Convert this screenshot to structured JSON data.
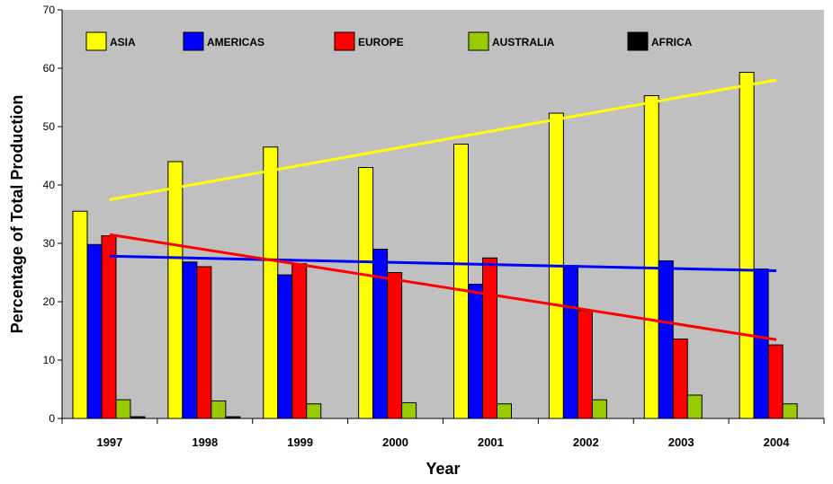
{
  "chart_data": {
    "type": "bar",
    "categories": [
      "1997",
      "1998",
      "1999",
      "2000",
      "2001",
      "2002",
      "2003",
      "2004"
    ],
    "series": [
      {
        "name": "ASIA",
        "color": "#ffff00",
        "values": [
          35.5,
          44,
          46.5,
          43,
          47,
          52.3,
          55.3,
          59.3
        ]
      },
      {
        "name": "AMERICAS",
        "color": "#0000ff",
        "values": [
          29.8,
          26.8,
          24.6,
          29,
          23,
          26.2,
          27,
          25.6
        ]
      },
      {
        "name": "EUROPE",
        "color": "#ff0000",
        "values": [
          31.3,
          26,
          26.5,
          25,
          27.5,
          18.5,
          13.6,
          12.6
        ]
      },
      {
        "name": "AUSTRALIA",
        "color": "#99cc00",
        "values": [
          3.2,
          3,
          2.5,
          2.7,
          2.5,
          3.2,
          4,
          2.5
        ]
      },
      {
        "name": "AFRICA",
        "color": "#000000",
        "values": [
          0.3,
          0.3,
          0,
          0,
          0,
          0,
          0,
          0
        ]
      }
    ],
    "trendlines": [
      {
        "series": "ASIA",
        "color": "#ffff00",
        "start": 37.5,
        "end": 58
      },
      {
        "series": "AMERICAS",
        "color": "#0000ff",
        "start": 27.8,
        "end": 25.3
      },
      {
        "series": "EUROPE",
        "color": "#ff0000",
        "start": 31.5,
        "end": 13.5
      }
    ],
    "xlabel": "Year",
    "ylabel": "Percentage of Total Production",
    "ylim": [
      0,
      70
    ],
    "yticks": [
      "0",
      "10",
      "20",
      "30",
      "40",
      "50",
      "60",
      "70"
    ],
    "plot_background": "#c0c0c0",
    "grid": false,
    "legend_placement": "top-inside"
  }
}
